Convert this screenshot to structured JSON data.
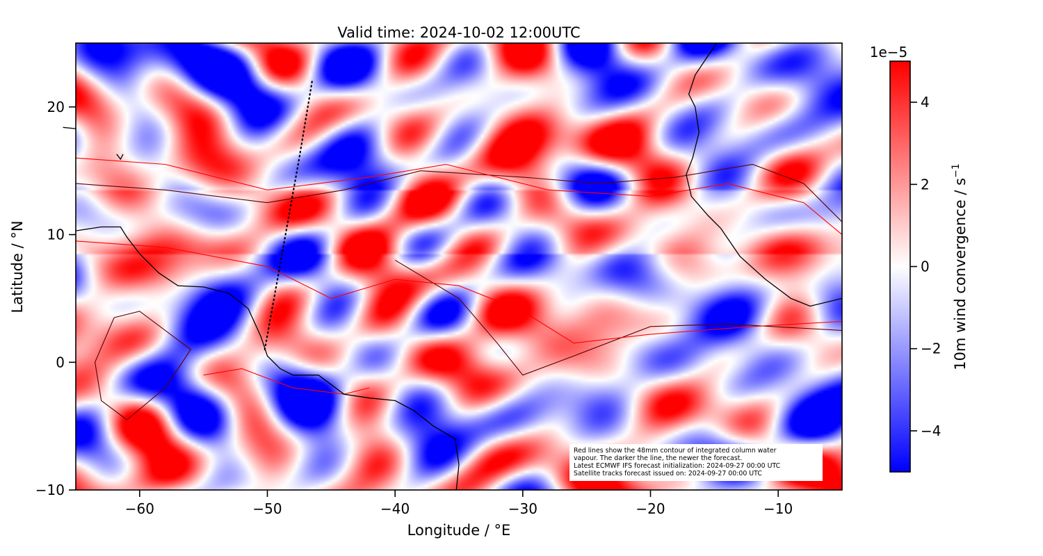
{
  "chart_data": {
    "type": "heatmap",
    "title": "Valid time: 2024-10-02 12:00UTC",
    "xlabel": "Longitude / °E",
    "ylabel": "Latitude / °N",
    "xlim": [
      -65,
      -5
    ],
    "ylim": [
      -10,
      25
    ],
    "xticks": [
      -60,
      -50,
      -40,
      -30,
      -20,
      -10
    ],
    "xtick_labels": [
      "−60",
      "−50",
      "−40",
      "−30",
      "−20",
      "−10"
    ],
    "yticks": [
      -10,
      0,
      10,
      20
    ],
    "ytick_labels": [
      "−10",
      "0",
      "10",
      "20"
    ],
    "colormap": "bwr",
    "colors": {
      "low": "#0000ff",
      "mid": "#ffffff",
      "high": "#ff0000",
      "coast": "#000000",
      "contour_new": "#5a0000",
      "contour_old": "#ff0000"
    },
    "colorbar": {
      "label": "10m wind convergence / s",
      "label_exponent": "−1",
      "offset_text": "1e−5",
      "vmin": -5,
      "vmax": 5,
      "ticks": [
        -4,
        -2,
        0,
        2,
        4
      ],
      "tick_labels": [
        "−4",
        "−2",
        "0",
        "2",
        "4"
      ]
    },
    "satellite_track": [
      [
        -50.2,
        1.0
      ],
      [
        -49.3,
        6.0
      ],
      [
        -48.4,
        11.0
      ],
      [
        -47.5,
        16.0
      ],
      [
        -46.5,
        22.0
      ]
    ],
    "coastlines": [
      [
        [
          -65,
          10.3
        ],
        [
          -63,
          10.6
        ],
        [
          -61.5,
          10.6
        ],
        [
          -61,
          9.8
        ],
        [
          -60,
          8.5
        ],
        [
          -58.5,
          7
        ],
        [
          -57,
          6
        ],
        [
          -55,
          5.9
        ],
        [
          -53,
          5.4
        ],
        [
          -51.5,
          4.2
        ],
        [
          -50.5,
          2
        ],
        [
          -50,
          0.5
        ],
        [
          -49,
          -0.5
        ],
        [
          -48,
          -1
        ],
        [
          -46,
          -1
        ],
        [
          -44,
          -2.5
        ],
        [
          -42,
          -2.8
        ],
        [
          -40,
          -3
        ],
        [
          -38.5,
          -3.8
        ],
        [
          -37,
          -5
        ],
        [
          -35.3,
          -6
        ],
        [
          -35,
          -8
        ],
        [
          -35.2,
          -10
        ]
      ],
      [
        [
          -5,
          5
        ],
        [
          -7.5,
          4.4
        ],
        [
          -9,
          5
        ],
        [
          -11,
          6.5
        ],
        [
          -13,
          8.3
        ],
        [
          -14.5,
          10.5
        ],
        [
          -15.5,
          11.5
        ],
        [
          -16.8,
          13
        ],
        [
          -17.2,
          14.7
        ],
        [
          -16.7,
          16
        ],
        [
          -16.2,
          18
        ],
        [
          -16.5,
          20
        ],
        [
          -17,
          21
        ],
        [
          -16.5,
          22.5
        ],
        [
          -15.5,
          24
        ],
        [
          -14.8,
          25
        ]
      ],
      [
        [
          -66,
          18.4
        ],
        [
          -65,
          18.3
        ]
      ],
      [
        [
          -61.8,
          16.3
        ],
        [
          -61.5,
          15.9
        ],
        [
          -61.3,
          16.3
        ]
      ]
    ],
    "contours": [
      {
        "age": "newest",
        "points": [
          [
            -65,
            14
          ],
          [
            -58,
            13.5
          ],
          [
            -50,
            12.5
          ],
          [
            -44,
            13.5
          ],
          [
            -38,
            15
          ],
          [
            -30,
            14.5
          ],
          [
            -24,
            14
          ],
          [
            -18,
            14.5
          ],
          [
            -12,
            15.5
          ],
          [
            -8,
            14
          ],
          [
            -5,
            11
          ]
        ]
      },
      {
        "age": "newest",
        "points": [
          [
            -40,
            8
          ],
          [
            -35,
            5
          ],
          [
            -32,
            1.5
          ],
          [
            -30,
            -1
          ],
          [
            -26,
            0.5
          ],
          [
            -20,
            2.8
          ],
          [
            -14,
            3
          ],
          [
            -5,
            2.5
          ]
        ]
      },
      {
        "age": "older",
        "points": [
          [
            -65,
            9.5
          ],
          [
            -58,
            9
          ],
          [
            -50,
            7.5
          ],
          [
            -45,
            5
          ],
          [
            -40,
            6.5
          ],
          [
            -35,
            6
          ],
          [
            -30,
            4
          ],
          [
            -26,
            1.5
          ],
          [
            -20,
            2.2
          ],
          [
            -12,
            2.8
          ],
          [
            -5,
            3.2
          ]
        ]
      },
      {
        "age": "older",
        "points": [
          [
            -65,
            16
          ],
          [
            -58,
            15.5
          ],
          [
            -50,
            13.5
          ],
          [
            -42,
            14.5
          ],
          [
            -36,
            15.5
          ],
          [
            -28,
            13.5
          ],
          [
            -20,
            13
          ],
          [
            -14,
            14
          ],
          [
            -8,
            12.5
          ],
          [
            -5,
            10
          ]
        ]
      },
      {
        "age": "newest",
        "points": [
          [
            -62,
            3.5
          ],
          [
            -60,
            4
          ],
          [
            -58,
            2.5
          ],
          [
            -56,
            1
          ],
          [
            -58,
            -2
          ],
          [
            -61,
            -4.5
          ],
          [
            -63,
            -3
          ],
          [
            -63.5,
            0
          ],
          [
            -62,
            3.5
          ]
        ]
      },
      {
        "age": "older",
        "points": [
          [
            -55,
            -1
          ],
          [
            -52,
            -0.5
          ],
          [
            -48,
            -2
          ],
          [
            -44,
            -2.5
          ],
          [
            -42,
            -2
          ]
        ]
      }
    ],
    "annotation": [
      "Red lines show the 48mm contour of integrated column water",
      "vapour. The darker the line, the newer the forecast.",
      "Latest ECMWF IFS forecast initialization: 2024-09-27 00:00 UTC",
      "Satellite tracks forecast issued on: 2024-09-27 00:00 UTC"
    ]
  }
}
